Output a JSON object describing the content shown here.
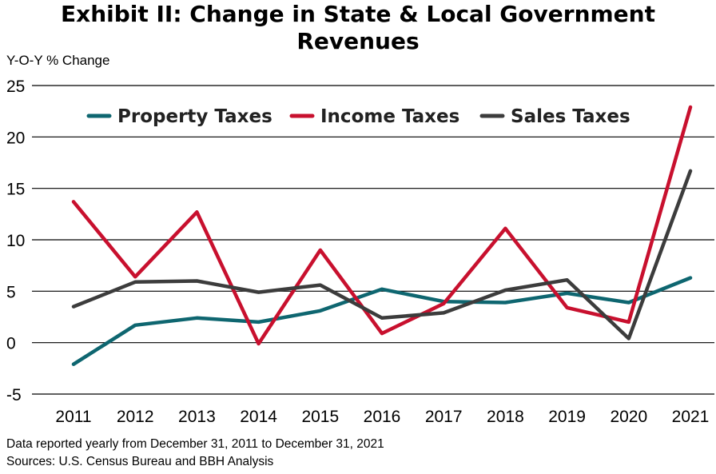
{
  "page": {
    "title_line1": "Exhibit II: Change in State & Local Government",
    "title_line2": "Revenues",
    "footnote_line1": "Data reported yearly from December 31, 2011 to December 31, 2021",
    "footnote_line2": "Sources: U.S. Census Bureau and BBH Analysis"
  },
  "chart_data": {
    "type": "line",
    "title": "Exhibit II: Change in State & Local Government Revenues",
    "ylabel": "Y-O-Y % Change",
    "xlabel": "",
    "categories": [
      "2011",
      "2012",
      "2013",
      "2014",
      "2015",
      "2016",
      "2017",
      "2018",
      "2019",
      "2020",
      "2021"
    ],
    "ylim": [
      -5,
      25
    ],
    "yticks": [
      -5,
      0,
      5,
      10,
      15,
      20,
      25
    ],
    "grid": "horizontal",
    "legend": "top",
    "series": [
      {
        "name": "Property Taxes",
        "color": "#0e6670",
        "values": [
          -2.1,
          1.7,
          2.4,
          2.0,
          3.1,
          5.2,
          4.0,
          3.9,
          4.8,
          3.9,
          6.3
        ]
      },
      {
        "name": "Income Taxes",
        "color": "#c8102e",
        "values": [
          13.7,
          6.4,
          12.7,
          -0.1,
          9.0,
          0.9,
          3.8,
          11.1,
          3.4,
          2.0,
          22.9
        ]
      },
      {
        "name": "Sales Taxes",
        "color": "#3c3c3c",
        "values": [
          3.5,
          5.9,
          6.0,
          4.9,
          5.6,
          2.4,
          2.9,
          5.1,
          6.1,
          0.4,
          16.7
        ]
      }
    ]
  }
}
